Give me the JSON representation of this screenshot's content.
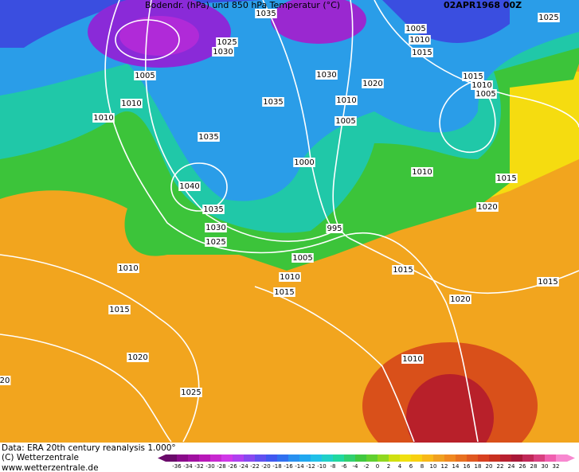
{
  "title": "Bodendr. (hPa) und 850 hPa Temperatur (°C)",
  "date": "02APR1968 00Z",
  "isobar_labels": [
    "1035",
    "1025",
    "1005",
    "1025",
    "1010",
    "1030",
    "1015",
    "1005",
    "1030",
    "1020",
    "1015",
    "1010",
    "1005",
    "1010",
    "1035",
    "1010",
    "1010",
    "1005",
    "1035",
    "1000",
    "1010",
    "1015",
    "1040",
    "1020",
    "1035",
    "995",
    "1030",
    "1025",
    "1005",
    "1010",
    "1015",
    "1010",
    "1015",
    "1015",
    "1020",
    "1015",
    "1020",
    "1010",
    "1025",
    "20"
  ],
  "footer": {
    "data": "Data: ERA 20th century reanalysis 1.000°",
    "copyright": "(C) Wetterzentrale",
    "url": "www.wetterzentrale.de"
  },
  "colorbar": {
    "ticks": [
      -36,
      -34,
      -32,
      -30,
      -28,
      -26,
      -24,
      -22,
      -20,
      -18,
      -16,
      -14,
      -12,
      -10,
      -8,
      -6,
      -4,
      -2,
      0,
      2,
      4,
      6,
      8,
      10,
      12,
      14,
      16,
      18,
      20,
      22,
      24,
      26,
      28,
      30,
      32
    ]
  }
}
